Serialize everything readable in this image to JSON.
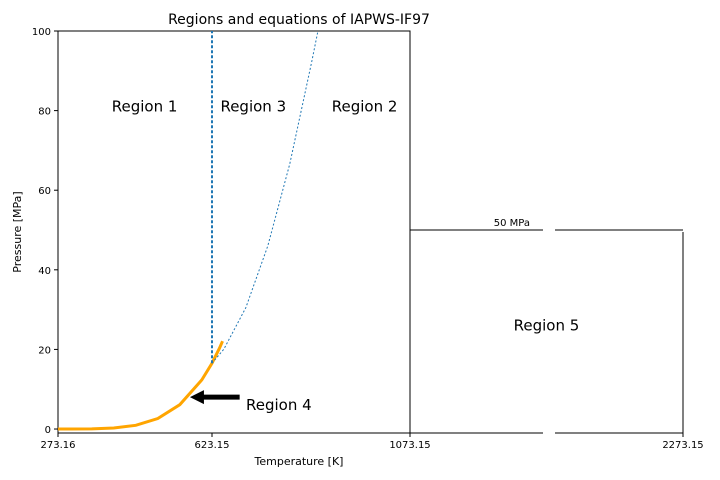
{
  "chart_data": {
    "type": "line",
    "title": "Regions and equations of IAPWS-IF97",
    "xlabel": "Temperature [K]",
    "ylabel": "Pressure [MPa]",
    "xlim": [
      273.16,
      2273.15
    ],
    "ylim": [
      -1,
      100
    ],
    "axis_break": [
      1073.15,
      2273.15
    ],
    "xticks": [
      "273.16",
      "623.15",
      "1073.15",
      "2273.15"
    ],
    "yticks": [
      "0",
      "20",
      "40",
      "60",
      "80",
      "100"
    ],
    "grid": false,
    "series": [
      {
        "role": "saturation-line",
        "color": "#ffa500",
        "style": "solid",
        "x": [
          273.16,
          300,
          350,
          400,
          450,
          500,
          550,
          600,
          623.15,
          640,
          647.096
        ],
        "y": [
          0.000611,
          0.00354,
          0.0417,
          0.2458,
          0.932,
          2.639,
          6.117,
          12.34,
          16.53,
          20.27,
          22.064
        ]
      },
      {
        "role": "region-1-3-boundary",
        "color": "#1f77b4",
        "style": "dashed",
        "x": [
          623.15,
          623.15
        ],
        "y": [
          16.53,
          100
        ]
      },
      {
        "role": "b23-boundary",
        "color": "#1f77b4",
        "style": "dotted",
        "x": [
          623.15,
          650,
          700,
          750,
          800,
          850,
          863.91
        ],
        "y": [
          16.53,
          20.04,
          30.48,
          46.02,
          66.65,
          92.38,
          100
        ]
      },
      {
        "role": "region-5-boundary",
        "color": "#000000",
        "style": "solid",
        "x": [
          1073.15,
          1073.15,
          2273.15,
          2273.15
        ],
        "y": [
          0,
          50,
          50,
          0
        ]
      }
    ],
    "annotations": [
      {
        "text": "Region 1",
        "x": 470,
        "y": 81
      },
      {
        "text": "Region 3",
        "x": 717,
        "y": 81
      },
      {
        "text": "Region 2",
        "x": 970,
        "y": 81
      },
      {
        "text": "Region 4",
        "x": 700,
        "y": 6,
        "arrow_from": [
          686,
          8
        ],
        "arrow_to": [
          573,
          8
        ]
      },
      {
        "text": "Region 5",
        "x": 1673,
        "y": 26
      },
      {
        "text": "50 MPa",
        "x": 1473,
        "y": 52
      }
    ]
  }
}
